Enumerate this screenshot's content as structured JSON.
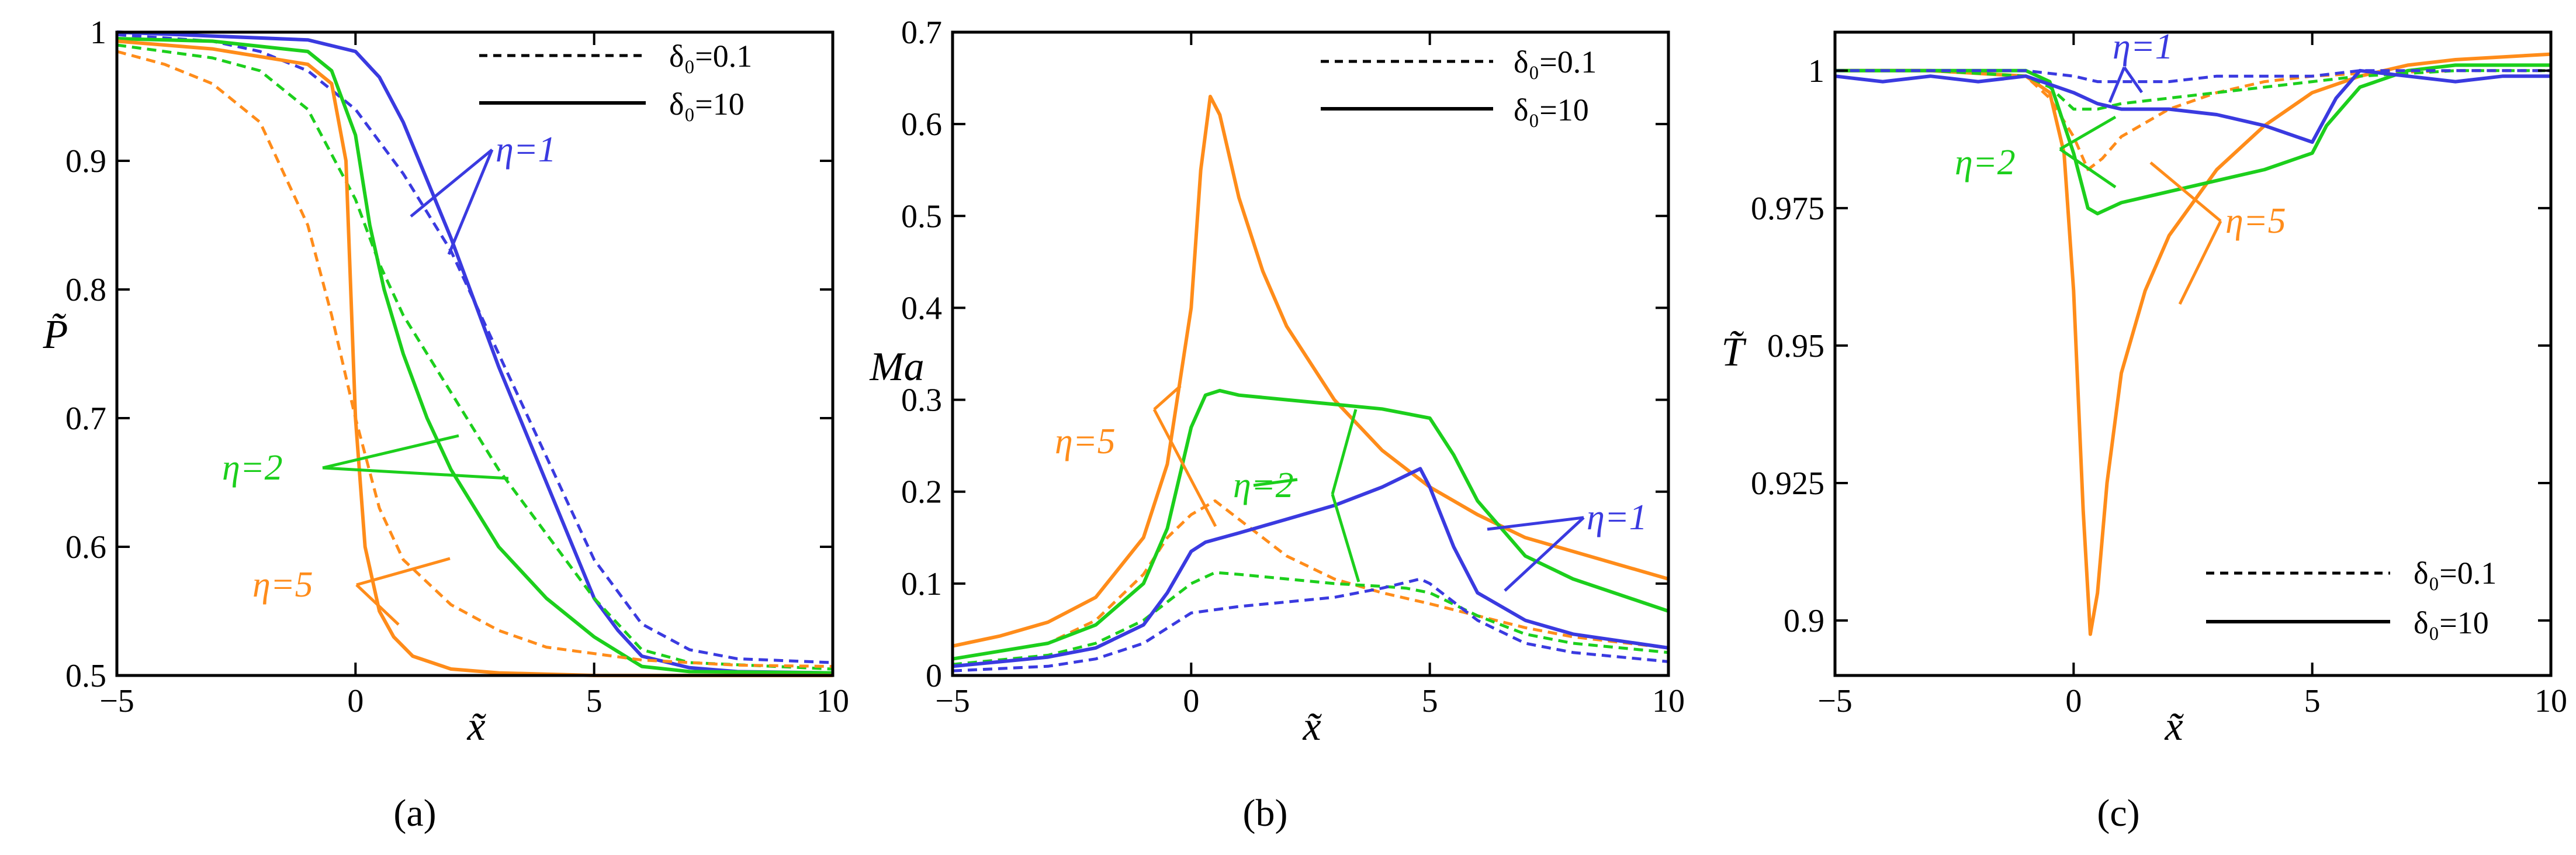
{
  "figure": {
    "panel_labels": [
      "(a)",
      "(b)",
      "(c)"
    ]
  },
  "colors": {
    "eta1": "#3a3ae0",
    "eta2": "#1ccf1c",
    "eta5": "#ff8c1a"
  },
  "chart_data": [
    {
      "type": "line",
      "title": "(a)",
      "xlabel": "x̃",
      "ylabel": "P̃",
      "xlim": [
        -5,
        10
      ],
      "ylim": [
        0.5,
        1
      ],
      "xticks": [
        -5,
        0,
        5,
        10
      ],
      "xtick_labels": [
        "−5",
        "0",
        "5",
        "10"
      ],
      "yticks": [
        0.5,
        0.6,
        0.7,
        0.8,
        0.9,
        1
      ],
      "ytick_labels": [
        "0.5",
        "0.6",
        "0.7",
        "0.8",
        "0.9",
        "1"
      ],
      "legend": [
        {
          "label": "δ₀=0.1",
          "style": "dashed"
        },
        {
          "label": "δ₀=10",
          "style": "solid"
        }
      ],
      "annotations": [
        "η=1",
        "η=2",
        "η=5"
      ],
      "series": [
        {
          "name": "η=1, δ₀=10",
          "color": "eta1",
          "dash": false,
          "x": [
            -5,
            -3,
            -1,
            0,
            0.5,
            1,
            2,
            3,
            4,
            5,
            5.5,
            6,
            7,
            8,
            10
          ],
          "y": [
            1.0,
            0.997,
            0.994,
            0.985,
            0.965,
            0.93,
            0.84,
            0.74,
            0.65,
            0.56,
            0.535,
            0.515,
            0.506,
            0.503,
            0.502
          ]
        },
        {
          "name": "η=1, δ₀=0.1",
          "color": "eta1",
          "dash": true,
          "x": [
            -5,
            -3,
            -2,
            -1,
            0,
            1,
            2,
            3,
            4,
            5,
            6,
            7,
            8,
            10
          ],
          "y": [
            0.998,
            0.993,
            0.985,
            0.97,
            0.94,
            0.89,
            0.83,
            0.75,
            0.67,
            0.59,
            0.54,
            0.52,
            0.513,
            0.51
          ]
        },
        {
          "name": "η=2, δ₀=10",
          "color": "eta2",
          "dash": false,
          "x": [
            -5,
            -3,
            -1,
            -0.5,
            0,
            0.3,
            0.6,
            1,
            1.5,
            2,
            3,
            4,
            5,
            6,
            7,
            10
          ],
          "y": [
            0.995,
            0.993,
            0.985,
            0.97,
            0.92,
            0.85,
            0.8,
            0.75,
            0.7,
            0.66,
            0.6,
            0.56,
            0.53,
            0.507,
            0.503,
            0.502
          ]
        },
        {
          "name": "η=2, δ₀=0.1",
          "color": "eta2",
          "dash": true,
          "x": [
            -5,
            -3,
            -2,
            -1,
            0,
            0.5,
            1,
            2,
            3,
            4,
            5,
            6,
            7,
            10
          ],
          "y": [
            0.99,
            0.98,
            0.97,
            0.94,
            0.87,
            0.82,
            0.78,
            0.72,
            0.66,
            0.61,
            0.56,
            0.52,
            0.51,
            0.505
          ]
        },
        {
          "name": "η=5, δ₀=10",
          "color": "eta5",
          "dash": false,
          "x": [
            -5,
            -3,
            -1,
            -0.5,
            -0.2,
            0,
            0.2,
            0.5,
            0.8,
            1.2,
            2,
            3,
            5,
            10
          ],
          "y": [
            0.993,
            0.987,
            0.975,
            0.96,
            0.9,
            0.7,
            0.6,
            0.55,
            0.53,
            0.515,
            0.505,
            0.502,
            0.5,
            0.5
          ]
        },
        {
          "name": "η=5, δ₀=0.1",
          "color": "eta5",
          "dash": true,
          "x": [
            -5,
            -4,
            -3,
            -2,
            -1,
            -0.5,
            0,
            0.5,
            1,
            2,
            3,
            4,
            6,
            8,
            10
          ],
          "y": [
            0.985,
            0.975,
            0.96,
            0.93,
            0.85,
            0.78,
            0.7,
            0.63,
            0.59,
            0.555,
            0.535,
            0.522,
            0.512,
            0.508,
            0.507
          ]
        }
      ]
    },
    {
      "type": "line",
      "title": "(b)",
      "xlabel": "x̃",
      "ylabel": "Ma",
      "xlim": [
        -5,
        10
      ],
      "ylim": [
        0,
        0.7
      ],
      "xticks": [
        -5,
        0,
        5,
        10
      ],
      "xtick_labels": [
        "−5",
        "0",
        "5",
        "10"
      ],
      "yticks": [
        0,
        0.1,
        0.2,
        0.3,
        0.4,
        0.5,
        0.6,
        0.7
      ],
      "ytick_labels": [
        "0",
        "0.1",
        "0.2",
        "0.3",
        "0.4",
        "0.5",
        "0.6",
        "0.7"
      ],
      "legend": [
        {
          "label": "δ₀=0.1",
          "style": "dashed"
        },
        {
          "label": "δ₀=10",
          "style": "solid"
        }
      ],
      "annotations": [
        "η=5",
        "η=2",
        "η=1"
      ],
      "series": [
        {
          "name": "η=5, δ₀=10",
          "color": "eta5",
          "dash": false,
          "x": [
            -5,
            -4,
            -3,
            -2,
            -1,
            -0.5,
            0,
            0.2,
            0.4,
            0.6,
            1,
            1.5,
            2,
            3,
            4,
            5,
            6,
            7,
            8,
            10
          ],
          "y": [
            0.032,
            0.043,
            0.058,
            0.085,
            0.15,
            0.23,
            0.4,
            0.55,
            0.63,
            0.61,
            0.52,
            0.44,
            0.38,
            0.3,
            0.245,
            0.205,
            0.175,
            0.15,
            0.135,
            0.105
          ]
        },
        {
          "name": "η=5, δ₀=0.1",
          "color": "eta5",
          "dash": true,
          "x": [
            -5,
            -3,
            -2,
            -1,
            -0.5,
            0,
            0.5,
            1,
            2,
            3,
            4,
            5,
            6,
            7,
            8,
            10
          ],
          "y": [
            0.018,
            0.035,
            0.06,
            0.11,
            0.15,
            0.175,
            0.19,
            0.17,
            0.13,
            0.105,
            0.09,
            0.078,
            0.065,
            0.052,
            0.042,
            0.03
          ]
        },
        {
          "name": "η=2, δ₀=10",
          "color": "eta2",
          "dash": false,
          "x": [
            -5,
            -3,
            -2,
            -1,
            -0.5,
            0,
            0.3,
            0.6,
            1,
            2,
            3,
            4,
            5,
            5.5,
            6,
            7,
            8,
            10
          ],
          "y": [
            0.018,
            0.035,
            0.055,
            0.1,
            0.16,
            0.27,
            0.305,
            0.31,
            0.305,
            0.3,
            0.295,
            0.29,
            0.28,
            0.24,
            0.19,
            0.13,
            0.105,
            0.07
          ]
        },
        {
          "name": "η=2, δ₀=0.1",
          "color": "eta2",
          "dash": true,
          "x": [
            -5,
            -3,
            -2,
            -1,
            0,
            0.5,
            1,
            2,
            3,
            4,
            4.5,
            5,
            6,
            7,
            8,
            10
          ],
          "y": [
            0.012,
            0.022,
            0.035,
            0.06,
            0.1,
            0.112,
            0.11,
            0.105,
            0.1,
            0.097,
            0.095,
            0.09,
            0.065,
            0.045,
            0.035,
            0.025
          ]
        },
        {
          "name": "η=1, δ₀=10",
          "color": "eta1",
          "dash": false,
          "x": [
            -5,
            -3,
            -2,
            -1,
            -0.5,
            0,
            0.3,
            1,
            2,
            3,
            4,
            4.8,
            5,
            5.5,
            6,
            7,
            8,
            10
          ],
          "y": [
            0.01,
            0.02,
            0.03,
            0.055,
            0.09,
            0.135,
            0.145,
            0.155,
            0.17,
            0.185,
            0.205,
            0.225,
            0.205,
            0.14,
            0.09,
            0.06,
            0.045,
            0.03
          ]
        },
        {
          "name": "η=1, δ₀=0.1",
          "color": "eta1",
          "dash": true,
          "x": [
            -5,
            -3,
            -2,
            -1,
            0,
            1,
            2,
            3,
            4,
            4.8,
            5,
            6,
            7,
            8,
            10
          ],
          "y": [
            0.005,
            0.01,
            0.018,
            0.035,
            0.068,
            0.075,
            0.08,
            0.085,
            0.095,
            0.105,
            0.1,
            0.06,
            0.035,
            0.025,
            0.015
          ]
        }
      ]
    },
    {
      "type": "line",
      "title": "(c)",
      "xlabel": "x̃",
      "ylabel": "T̃",
      "xlim": [
        -5,
        10
      ],
      "ylim": [
        0.89,
        1.007
      ],
      "xticks": [
        -5,
        0,
        5,
        10
      ],
      "xtick_labels": [
        "−5",
        "0",
        "5",
        "10"
      ],
      "yticks": [
        0.9,
        0.925,
        0.95,
        0.975,
        1
      ],
      "ytick_labels": [
        "0.9",
        "0.925",
        "0.95",
        "0.975",
        "1"
      ],
      "legend": [
        {
          "label": "δ₀=0.1",
          "style": "dashed"
        },
        {
          "label": "δ₀=10",
          "style": "solid"
        }
      ],
      "annotations": [
        "η=1",
        "η=2",
        "η=5"
      ],
      "series": [
        {
          "name": "η=5, δ₀=10",
          "color": "eta5",
          "dash": false,
          "x": [
            -5,
            -3,
            -1,
            -0.5,
            -0.2,
            0,
            0.2,
            0.35,
            0.5,
            0.7,
            1,
            1.5,
            2,
            3,
            4,
            5,
            6,
            7,
            8,
            10
          ],
          "y": [
            1.0,
            1.0,
            0.999,
            0.996,
            0.985,
            0.96,
            0.92,
            0.8975,
            0.905,
            0.925,
            0.945,
            0.96,
            0.97,
            0.982,
            0.99,
            0.996,
            0.999,
            1.001,
            1.002,
            1.003
          ]
        },
        {
          "name": "η=5, δ₀=0.1",
          "color": "eta5",
          "dash": true,
          "x": [
            -5,
            -3,
            -1,
            -0.5,
            0,
            0.3,
            0.6,
            1,
            2,
            3,
            4,
            5,
            6,
            8,
            10
          ],
          "y": [
            1.0,
            1.0,
            0.999,
            0.995,
            0.988,
            0.982,
            0.984,
            0.988,
            0.993,
            0.996,
            0.998,
            0.999,
            0.9995,
            1.0,
            1.0
          ]
        },
        {
          "name": "η=2, δ₀=10",
          "color": "eta2",
          "dash": false,
          "x": [
            -5,
            -3,
            -1,
            -0.5,
            0,
            0.3,
            0.5,
            1,
            2,
            3,
            4,
            5,
            5.3,
            6,
            7,
            8,
            10
          ],
          "y": [
            1.0,
            1.0,
            1.0,
            0.998,
            0.985,
            0.975,
            0.974,
            0.976,
            0.978,
            0.98,
            0.982,
            0.985,
            0.99,
            0.997,
            1.0,
            1.001,
            1.001
          ]
        },
        {
          "name": "η=2, δ₀=0.1",
          "color": "eta2",
          "dash": true,
          "x": [
            -5,
            -3,
            -1,
            -0.5,
            0,
            0.5,
            1,
            2,
            3,
            4,
            5,
            6,
            8,
            10
          ],
          "y": [
            1.0,
            1.0,
            0.999,
            0.997,
            0.993,
            0.993,
            0.994,
            0.995,
            0.996,
            0.997,
            0.998,
            0.999,
            1.0,
            1.0
          ]
        },
        {
          "name": "η=1, δ₀=10",
          "color": "eta1",
          "dash": false,
          "x": [
            -5,
            -4,
            -3,
            -2,
            -1,
            0,
            0.5,
            1,
            2,
            3,
            4,
            5,
            5.5,
            6,
            7,
            8,
            9,
            10
          ],
          "y": [
            0.999,
            0.998,
            0.999,
            0.998,
            0.999,
            0.996,
            0.994,
            0.993,
            0.993,
            0.992,
            0.99,
            0.987,
            0.995,
            1.0,
            0.999,
            0.998,
            0.999,
            0.999
          ]
        },
        {
          "name": "η=1, δ₀=0.1",
          "color": "eta1",
          "dash": true,
          "x": [
            -5,
            -3,
            -1,
            0,
            0.5,
            1,
            2,
            3,
            4,
            5,
            6,
            8,
            10
          ],
          "y": [
            1.0,
            1.0,
            1.0,
            0.999,
            0.998,
            0.998,
            0.998,
            0.999,
            0.999,
            0.999,
            1.0,
            1.0,
            1.0
          ]
        }
      ]
    }
  ]
}
